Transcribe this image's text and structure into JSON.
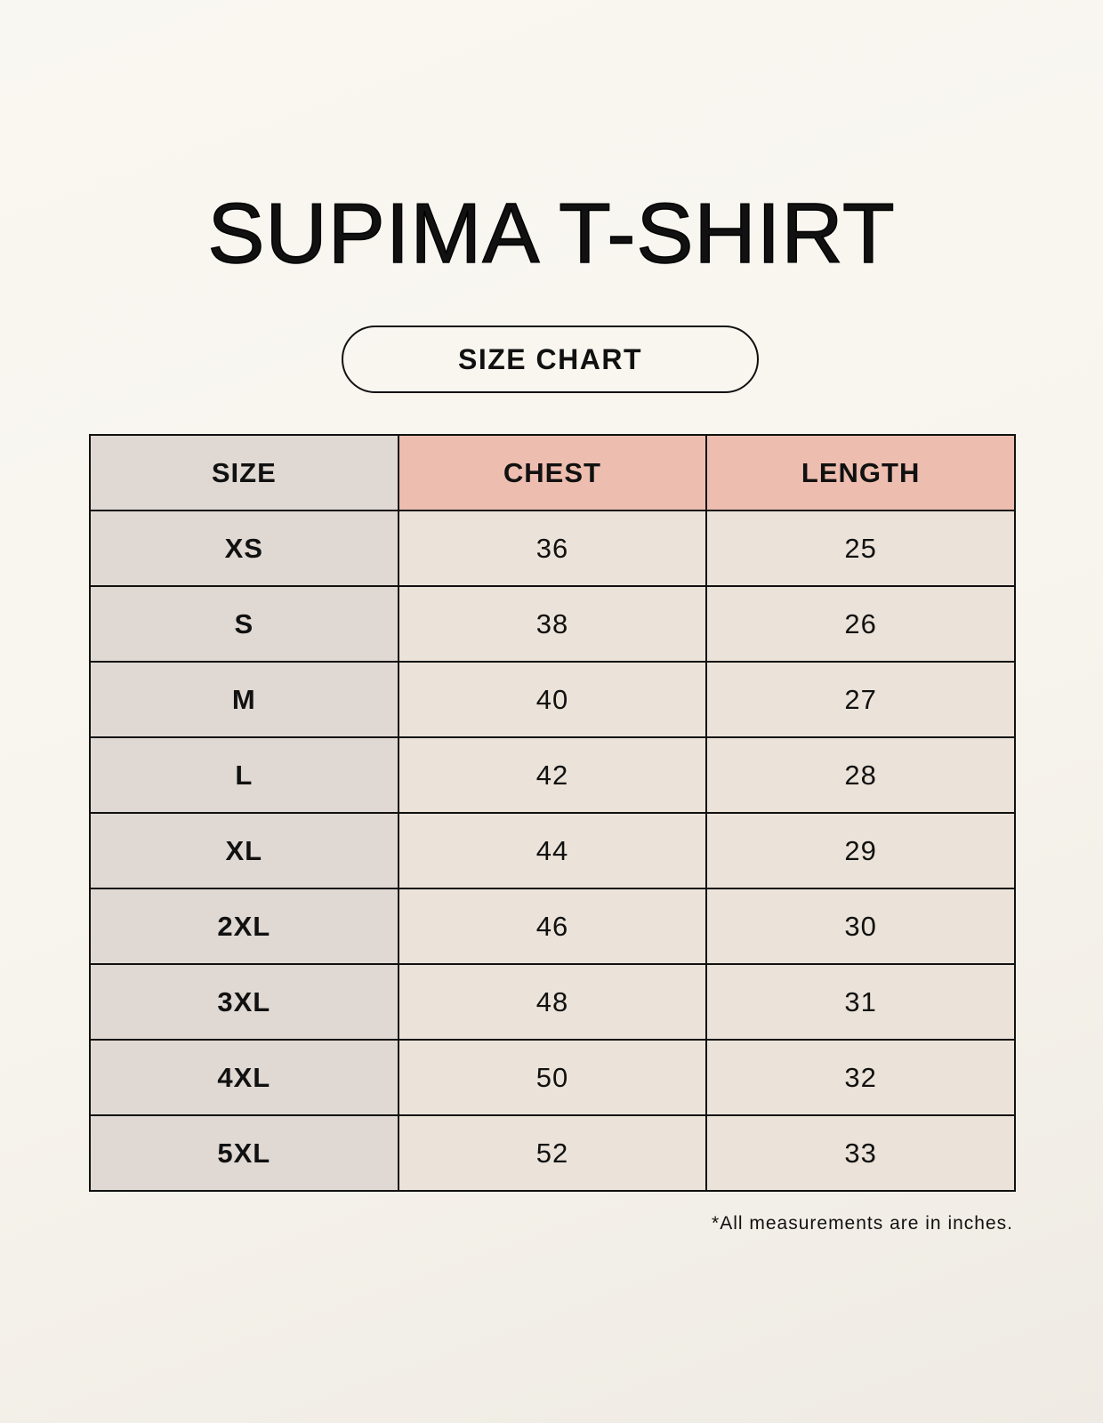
{
  "title": "SUPIMA T-SHIRT",
  "subtitle": "SIZE CHART",
  "colors": {
    "size_column": "#e0d9d3",
    "header_highlight": "#edbdaf",
    "value_cells": "#ebe3d9"
  },
  "table": {
    "headers": [
      "SIZE",
      "CHEST",
      "LENGTH"
    ],
    "rows": [
      [
        "XS",
        "36",
        "25"
      ],
      [
        "S",
        "38",
        "26"
      ],
      [
        "M",
        "40",
        "27"
      ],
      [
        "L",
        "42",
        "28"
      ],
      [
        "XL",
        "44",
        "29"
      ],
      [
        "2XL",
        "46",
        "30"
      ],
      [
        "3XL",
        "48",
        "31"
      ],
      [
        "4XL",
        "50",
        "32"
      ],
      [
        "5XL",
        "52",
        "33"
      ]
    ]
  },
  "footnote": "*All measurements are in inches."
}
